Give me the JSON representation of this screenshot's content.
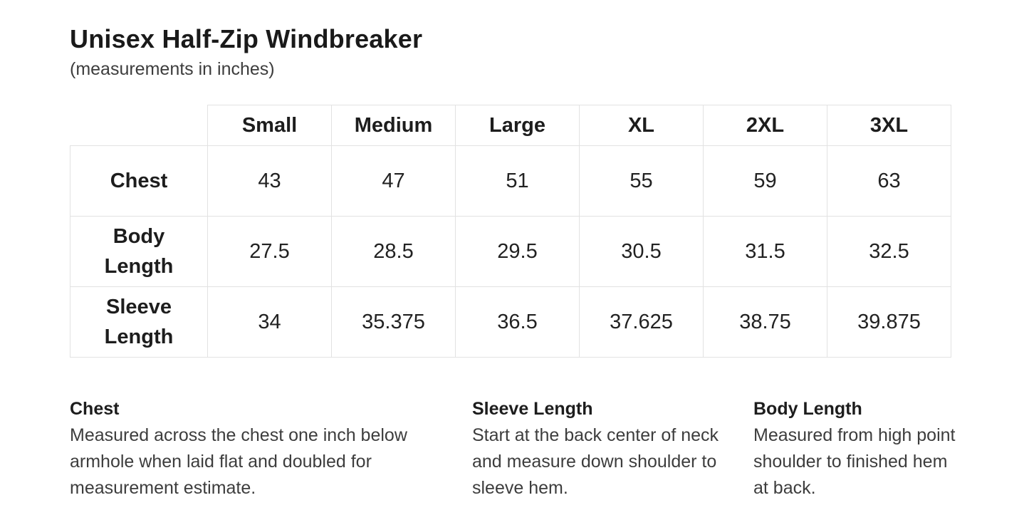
{
  "header": {
    "title": "Unisex Half-Zip Windbreaker",
    "subtitle": "(measurements in inches)"
  },
  "size_chart": {
    "columns": [
      "Small",
      "Medium",
      "Large",
      "XL",
      "2XL",
      "3XL"
    ],
    "rows": [
      {
        "label": "Chest",
        "values": [
          "43",
          "47",
          "51",
          "55",
          "59",
          "63"
        ]
      },
      {
        "label": "Body Length",
        "values": [
          "27.5",
          "28.5",
          "29.5",
          "30.5",
          "31.5",
          "32.5"
        ]
      },
      {
        "label": "Sleeve Length",
        "values": [
          "34",
          "35.375",
          "36.5",
          "37.625",
          "38.75",
          "39.875"
        ]
      }
    ]
  },
  "definitions": [
    {
      "term": "Chest",
      "description": "Measured across the chest one inch below armhole when laid flat and doubled for measurement estimate."
    },
    {
      "term": "Sleeve Length",
      "description": "Start at the back center of neck and measure down shoulder to sleeve hem."
    },
    {
      "term": "Body Length",
      "description": "Measured from high point shoulder to finished hem at back."
    }
  ],
  "colors": {
    "background": "#ffffff",
    "text_primary": "#1d1d1d",
    "text_secondary": "#3d3d3d",
    "table_border": "#e2e2e2"
  }
}
